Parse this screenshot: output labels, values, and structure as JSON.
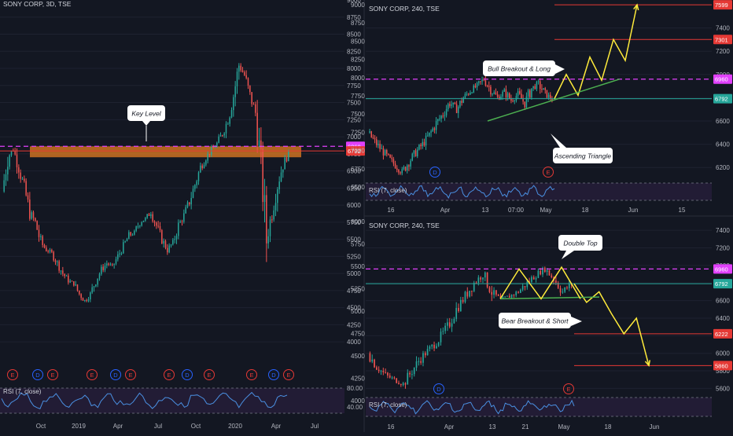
{
  "colors": {
    "background": "#131722",
    "grid": "#1e2230",
    "up": "#26a69a",
    "down": "#ef5350",
    "magenta": "#e040fb",
    "red_line": "#e53935",
    "teal_line": "#26a69a",
    "yellow": "#ffeb3b",
    "green_trend": "#4caf50",
    "orange_zone": "#e67e22",
    "rsi_fill": "#2a1f3d",
    "rsi_line": "#4a90e2",
    "axis_text": "#b2b5be"
  },
  "chart_data": [
    {
      "id": "left",
      "type": "candlestick",
      "title": "SONY CORP, 3D, TSE",
      "ylim": [
        3600,
        9000
      ],
      "y_ticks": [
        4000,
        4250,
        4500,
        4750,
        5000,
        5250,
        5500,
        5750,
        6000,
        6250,
        6500,
        6750,
        7000,
        7250,
        7500,
        7750,
        8000,
        8250,
        8500,
        8750,
        9000
      ],
      "x_ticks": [
        "Oct",
        "2019",
        "Apr",
        "Jul",
        "Oct",
        "2020",
        "Apr",
        "Jul"
      ],
      "price_tags": [
        {
          "label": "6860",
          "color": "#e040fb"
        },
        {
          "label": "6792",
          "color": "#e53935"
        }
      ],
      "annotations": [
        {
          "text": "Key Level"
        }
      ],
      "event_markers": [
        "E",
        "D",
        "E",
        "E",
        "D",
        "E",
        "E",
        "D",
        "E",
        "E",
        "D",
        "E"
      ],
      "rsi": {
        "label": "RSI (7, close)",
        "ticks": [
          "80.00",
          "40.00"
        ]
      },
      "key_level": [
        6700,
        6860
      ],
      "closes": [
        6200,
        6700,
        6820,
        6550,
        6250,
        5900,
        5750,
        5450,
        5350,
        5300,
        5150,
        5000,
        4900,
        4850,
        4700,
        4600,
        4700,
        4900,
        5050,
        5150,
        5100,
        5250,
        5400,
        5550,
        5600,
        5750,
        5800,
        5900,
        5700,
        5500,
        5350,
        5450,
        5700,
        5850,
        6050,
        6300,
        6550,
        6700,
        6800,
        6900,
        7050,
        7250,
        7600,
        8050,
        7900,
        7600,
        7350,
        6600,
        5500,
        5900,
        6300,
        6600,
        6750
      ]
    },
    {
      "id": "top-right",
      "type": "candlestick",
      "title": "SONY CORP, 240, TSE",
      "ylim": [
        6100,
        7600
      ],
      "y_ticks": [
        6200,
        6400,
        6600,
        6800,
        7000,
        7200,
        7400
      ],
      "left_ticks": [
        6500,
        6750,
        7000,
        7250,
        7500,
        7750,
        8000,
        8250,
        8500,
        8750,
        9000
      ],
      "x_ticks": [
        "16",
        "Apr",
        "13",
        "07:00",
        "May",
        "18",
        "Jun",
        "15"
      ],
      "price_tags": [
        {
          "label": "7599",
          "color": "#e53935"
        },
        {
          "label": "7301",
          "color": "#e53935"
        },
        {
          "label": "6960",
          "color": "#e040fb"
        },
        {
          "label": "6792",
          "color": "#26a69a"
        }
      ],
      "annotations": [
        {
          "text": "Bull Breakout & Long"
        },
        {
          "text": "Ascending Triangle"
        }
      ],
      "event_markers": [
        "D",
        "E"
      ],
      "rsi": {
        "label": "RSI (7, close)"
      },
      "projection": [
        6792,
        7000,
        6820,
        7150,
        6950,
        7301,
        7120,
        7599
      ],
      "closes": [
        6500,
        6420,
        6350,
        6280,
        6220,
        6160,
        6250,
        6330,
        6400,
        6480,
        6580,
        6660,
        6760,
        6700,
        6800,
        6860,
        6900,
        6960,
        6870,
        6800,
        6850,
        6780,
        6830,
        6750,
        6880,
        6920,
        6830,
        6792
      ]
    },
    {
      "id": "bottom-right",
      "type": "candlestick",
      "title": "SONY CORP, 240, TSE",
      "ylim": [
        5550,
        7500
      ],
      "y_ticks": [
        5600,
        5800,
        6000,
        6200,
        6400,
        6600,
        6800,
        7000,
        7200,
        7400
      ],
      "left_ticks": [
        4000,
        4250,
        4500,
        4750,
        5000,
        5250,
        5500,
        5750,
        6000
      ],
      "x_ticks": [
        "16",
        "Apr",
        "13",
        "21",
        "May",
        "18",
        "Jun"
      ],
      "price_tags": [
        {
          "label": "6960",
          "color": "#e040fb"
        },
        {
          "label": "6792",
          "color": "#26a69a"
        },
        {
          "label": "6222",
          "color": "#e53935"
        },
        {
          "label": "5860",
          "color": "#e53935"
        }
      ],
      "annotations": [
        {
          "text": "Double Top"
        },
        {
          "text": "Bear Breakout & Short"
        }
      ],
      "event_markers": [
        "D",
        "E"
      ],
      "rsi": {
        "label": "RSI (7, close)"
      },
      "projection": [
        6792,
        6580,
        6700,
        6450,
        6222,
        6400,
        5860
      ],
      "closes": [
        6000,
        5850,
        5750,
        5700,
        5650,
        5800,
        5950,
        6050,
        6150,
        6300,
        6500,
        6650,
        6800,
        6900,
        6700,
        6600,
        6650,
        6700,
        6800,
        6900,
        6960,
        6850,
        6700,
        6792
      ]
    }
  ]
}
